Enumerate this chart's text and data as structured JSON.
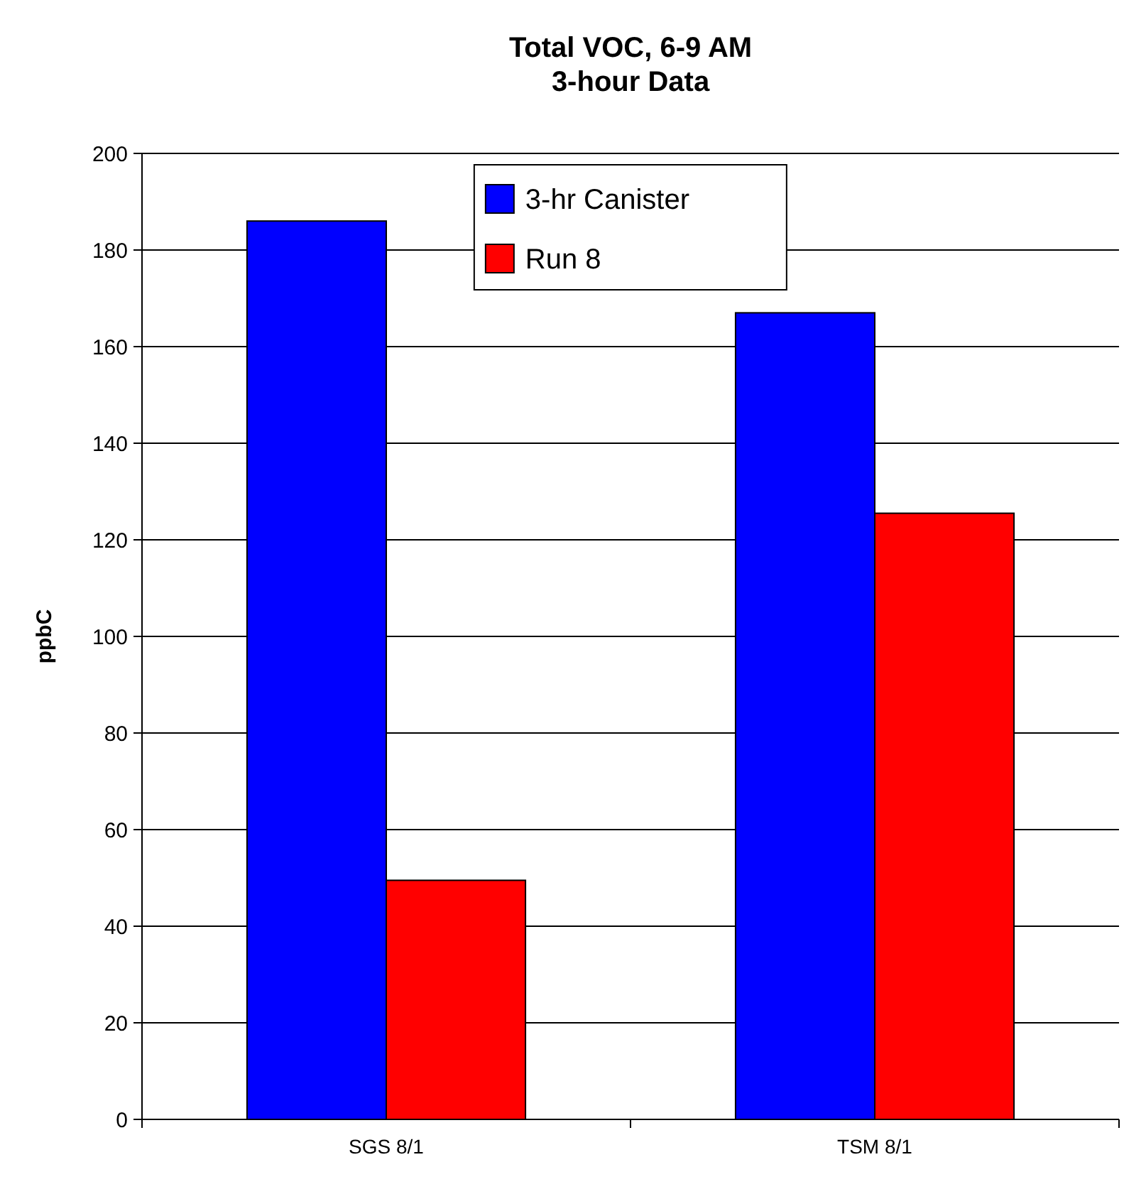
{
  "chart_data": {
    "type": "bar",
    "title": "Total VOC, 6-9 AM\n3-hour Data",
    "ylabel": "ppbC",
    "categories": [
      "SGS 8/1",
      "TSM 8/1"
    ],
    "series": [
      {
        "name": "3-hr Canister",
        "color": "#0000ff",
        "values": [
          186,
          167
        ]
      },
      {
        "name": "Run 8",
        "color": "#ff0000",
        "values": [
          49.5,
          125.5
        ]
      }
    ],
    "ylim": [
      0,
      200
    ],
    "yticks": [
      0,
      20,
      40,
      60,
      80,
      100,
      120,
      140,
      160,
      180,
      200
    ],
    "grid": "y",
    "legend": "top"
  }
}
